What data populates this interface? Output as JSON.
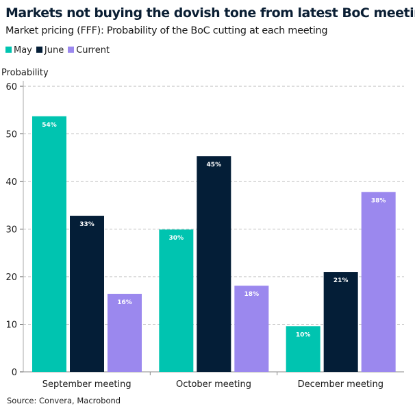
{
  "title": "Markets not buying the dovish tone from latest BoC meeting",
  "subtitle": "Market pricing (FFF): Probability of the BoC cutting at each meeting",
  "source": "Source: Convera, Macrobond",
  "chart_data": {
    "type": "bar",
    "ylabel": "Probability",
    "ylim": [
      0,
      60
    ],
    "yticks": [
      "0",
      "10",
      "20",
      "30",
      "40",
      "50",
      "60"
    ],
    "grid": true,
    "legend": "top-left",
    "categories": [
      "September meeting",
      "October meeting",
      "December meeting"
    ],
    "series": [
      {
        "name": "May",
        "color": "#00c4b0",
        "values": [
          53.7,
          29.9,
          9.6
        ],
        "labels": [
          "54%",
          "30%",
          "10%"
        ]
      },
      {
        "name": "June",
        "color": "#041e37",
        "values": [
          32.8,
          45.3,
          21.0
        ],
        "labels": [
          "33%",
          "45%",
          "21%"
        ]
      },
      {
        "name": "Current",
        "color": "#9b88ee",
        "values": [
          16.4,
          18.1,
          37.8
        ],
        "labels": [
          "16%",
          "18%",
          "38%"
        ]
      }
    ]
  }
}
